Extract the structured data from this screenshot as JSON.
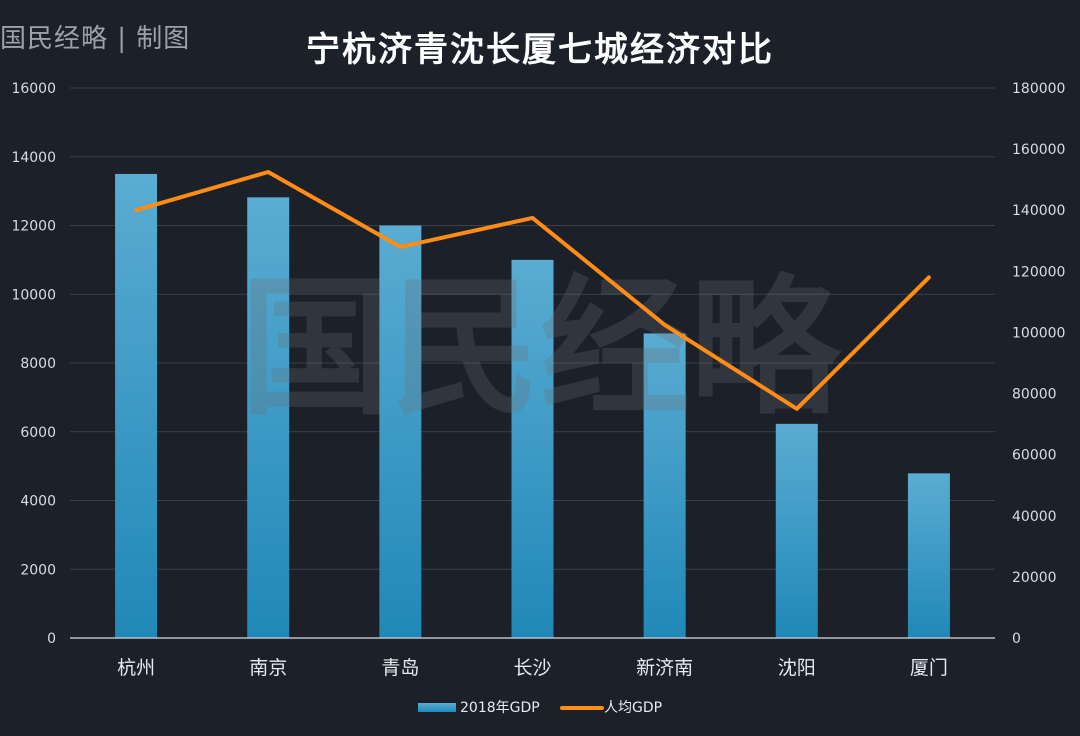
{
  "header": {
    "brand": "国民经略 | 制图",
    "title": "宁杭济青沈长厦七城经济对比"
  },
  "watermark": "国民经略",
  "chart_data": {
    "type": "bar",
    "title": "宁杭济青沈长厦七城经济对比",
    "categories": [
      "杭州",
      "南京",
      "青岛",
      "长沙",
      "新济南",
      "沈阳",
      "厦门"
    ],
    "series": [
      {
        "name": "2018年GDP",
        "type": "bar",
        "axis": "left",
        "color": "#2f9bcc",
        "values": [
          13500,
          12820,
          12000,
          11000,
          8860,
          6230,
          4790
        ]
      },
      {
        "name": "人均GDP",
        "type": "line",
        "axis": "right",
        "color": "#ff8c14",
        "values": [
          140000,
          152500,
          128000,
          137500,
          102500,
          75000,
          118000
        ]
      }
    ],
    "y_left": {
      "min": 0,
      "max": 16000,
      "ticks": [
        0,
        2000,
        4000,
        6000,
        8000,
        10000,
        12000,
        14000,
        16000
      ]
    },
    "y_right": {
      "min": 0,
      "max": 180000,
      "ticks": [
        0,
        20000,
        40000,
        60000,
        80000,
        100000,
        120000,
        140000,
        160000,
        180000
      ]
    },
    "grid": true,
    "legend": "bottom-center"
  },
  "colors": {
    "background": "#1b2029",
    "grid": "#3a414c",
    "bar_top": "#5aacd2",
    "bar_bottom": "#2088b8",
    "line": "#ff8c14"
  }
}
